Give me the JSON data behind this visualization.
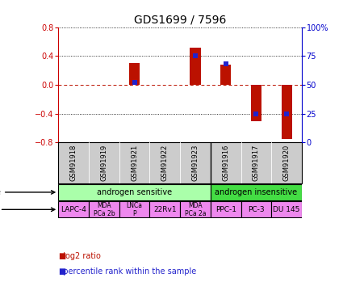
{
  "title": "GDS1699 / 7596",
  "samples": [
    "GSM91918",
    "GSM91919",
    "GSM91921",
    "GSM91922",
    "GSM91923",
    "GSM91916",
    "GSM91917",
    "GSM91920"
  ],
  "log2_ratio": [
    0.0,
    0.0,
    0.3,
    0.0,
    0.52,
    0.28,
    -0.5,
    -0.75
  ],
  "percentile_rank": [
    null,
    null,
    52,
    null,
    75,
    68,
    25,
    25
  ],
  "ylim": [
    -0.8,
    0.8
  ],
  "yticks_left": [
    -0.8,
    -0.4,
    0.0,
    0.4,
    0.8
  ],
  "cell_type_groups": [
    {
      "label": "androgen sensitive",
      "start": 0,
      "end": 5,
      "color": "#AAFFAA"
    },
    {
      "label": "androgen insensitive",
      "start": 5,
      "end": 8,
      "color": "#44DD44"
    }
  ],
  "cell_lines": [
    "LAPC-4",
    "MDA\nPCa 2b",
    "LNCa\nP",
    "22Rv1",
    "MDA\nPCa 2a",
    "PPC-1",
    "PC-3",
    "DU 145"
  ],
  "cell_line_color": "#EE88EE",
  "bar_color": "#BB1100",
  "dot_color": "#2222CC",
  "label_color_left": "#CC0000",
  "label_color_right": "#0000CC",
  "gsm_bg": "#CCCCCC",
  "separator_col": 5
}
